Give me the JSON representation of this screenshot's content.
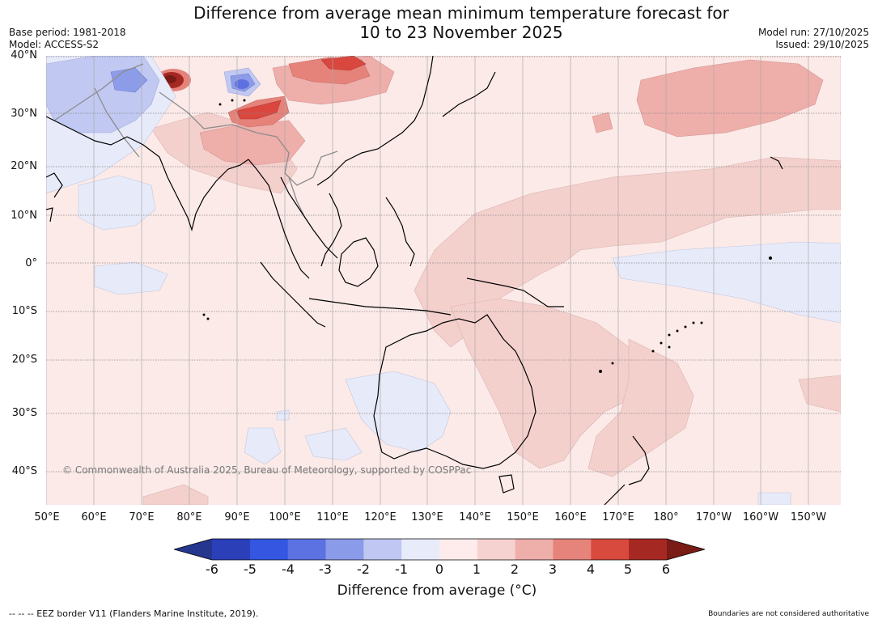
{
  "header": {
    "title_line1": "Difference from average mean minimum temperature forecast for",
    "title_line2": "10 to 23 November 2025",
    "base_period": "Base period: 1981-2018",
    "model": "Model: ACCESS-S2",
    "model_run": "Model run: 27/10/2025",
    "issued": "Issued: 29/10/2025"
  },
  "map": {
    "lat_labels": [
      "40°N",
      "30°N",
      "20°N",
      "10°N",
      "0°",
      "10°S",
      "20°S",
      "30°S",
      "40°S"
    ],
    "lon_labels": [
      "50°E",
      "60°E",
      "70°E",
      "80°E",
      "90°E",
      "100°E",
      "110°E",
      "120°E",
      "130°E",
      "140°E",
      "150°E",
      "160°E",
      "170°E",
      "180°",
      "170°W",
      "160°W",
      "150°W"
    ],
    "copyright": "© Commonwealth of Australia 2025, Bureau of Meteorology, supported by COSPPac",
    "colors": {
      "neutral_warm": "#fbeae8",
      "warm1": "#f4d0cd",
      "warm2": "#eeaeaa",
      "warm3": "#e5837b",
      "warm4": "#d9473e",
      "warm5": "#a62823",
      "warm6": "#7a1b16",
      "cool1": "#e7eaf9",
      "cool2": "#c1c9f2",
      "cool3": "#8d9ce8",
      "cool4": "#5e71e0",
      "cool5": "#3050d8",
      "cool6": "#2537a8",
      "land": "#000000"
    }
  },
  "colorbar": {
    "ticks": [
      "-6",
      "-5",
      "-4",
      "-3",
      "-2",
      "-1",
      "0",
      "1",
      "2",
      "3",
      "4",
      "5",
      "6"
    ],
    "colors": [
      "#25368f",
      "#2a3fb8",
      "#3456e0",
      "#5c72e3",
      "#8a9be9",
      "#bfc7f2",
      "#e8ebf9",
      "#fdeceb",
      "#f5d2cf",
      "#eeaeaa",
      "#e6837b",
      "#d8493e",
      "#a62823",
      "#7a1b16"
    ],
    "label": "Difference from average (°C)"
  },
  "footer": {
    "eez_note": "--  --  -- EEZ border V11 (Flanders Marine Institute, 2019).",
    "boundaries_note": "Boundaries are not considered authoritative"
  }
}
